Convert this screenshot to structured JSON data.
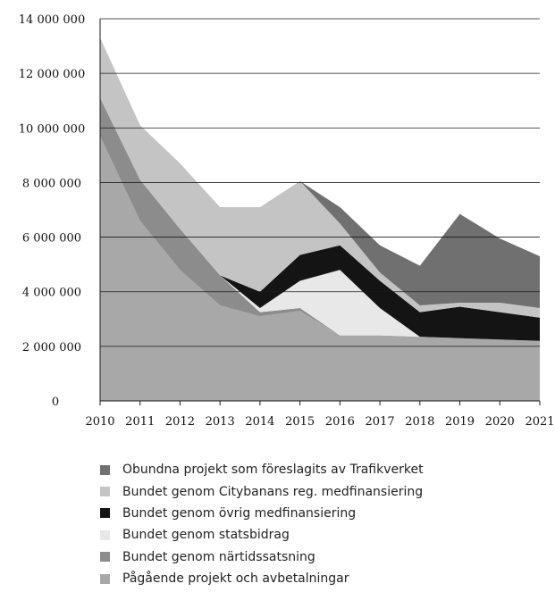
{
  "chart_data": {
    "type": "area",
    "stacked": true,
    "title": "",
    "xlabel": "",
    "ylabel": "",
    "x": [
      "2010",
      "2011",
      "2012",
      "2013",
      "2014",
      "2015",
      "2016",
      "2017",
      "2018",
      "2019",
      "2020",
      "2021"
    ],
    "ylim": [
      0,
      14000000
    ],
    "yticks": [
      0,
      2000000,
      4000000,
      6000000,
      8000000,
      10000000,
      12000000,
      14000000
    ],
    "ytick_labels": [
      "0",
      "2 000 000",
      "4 000 000",
      "6 000 000",
      "8 000 000",
      "10 000 000",
      "12 000 000",
      "14 000 000"
    ],
    "grid": "horizontal",
    "legend_position": "bottom",
    "series": [
      {
        "name": "Pågående projekt och avbetalningar",
        "color": "#a8a8a8",
        "values": [
          9700000,
          6600000,
          4800000,
          3500000,
          3100000,
          3300000,
          2400000,
          2400000,
          2350000,
          2300000,
          2250000,
          2200000
        ]
      },
      {
        "name": "Bundet genom närtidssatsning",
        "color": "#8c8c8c",
        "values": [
          1400000,
          1500000,
          1500000,
          1100000,
          150000,
          100000,
          0,
          0,
          0,
          0,
          0,
          0
        ]
      },
      {
        "name": "Bundet genom statsbidrag",
        "color": "#e8e8e8",
        "values": [
          0,
          0,
          0,
          0,
          150000,
          1000000,
          2400000,
          1000000,
          0,
          0,
          0,
          0
        ]
      },
      {
        "name": "Bundet genom övrig medfinansiering",
        "color": "#141414",
        "values": [
          0,
          0,
          0,
          0,
          600000,
          950000,
          900000,
          1000000,
          900000,
          1150000,
          1000000,
          850000
        ]
      },
      {
        "name": "Bundet genom Citybanans reg. medfinansiering",
        "color": "#c4c4c4",
        "values": [
          2200000,
          2000000,
          2400000,
          2500000,
          3100000,
          2700000,
          800000,
          300000,
          250000,
          150000,
          350000,
          350000
        ]
      },
      {
        "name": "Obundna projekt som föreslagits av Trafikverket",
        "color": "#707070",
        "values": [
          0,
          0,
          0,
          0,
          0,
          0,
          600000,
          1000000,
          1450000,
          3250000,
          2350000,
          1900000
        ]
      }
    ]
  },
  "legend": {
    "items": [
      {
        "label": "Obundna projekt som föreslagits av Trafikverket",
        "color": "#707070"
      },
      {
        "label": "Bundet genom Citybanans reg. medfinansiering",
        "color": "#c4c4c4"
      },
      {
        "label": "Bundet genom övrig medfinansiering",
        "color": "#141414"
      },
      {
        "label": "Bundet genom statsbidrag",
        "color": "#e8e8e8"
      },
      {
        "label": "Bundet genom närtidssatsning",
        "color": "#8c8c8c"
      },
      {
        "label": "Pågående projekt och avbetalningar",
        "color": "#a8a8a8"
      }
    ]
  }
}
